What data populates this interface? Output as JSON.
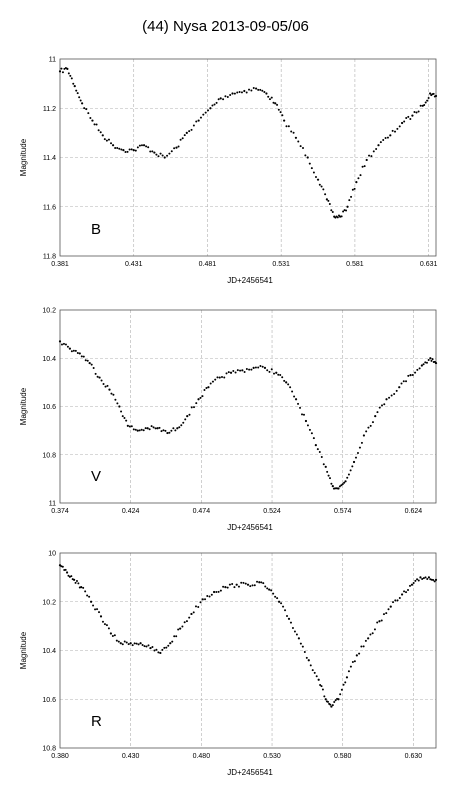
{
  "title": "(44) Nysa 2013-09-05/06",
  "chart_data": [
    {
      "type": "scatter",
      "band": "B",
      "xlabel": "JD+2456541",
      "ylabel": "Magnitude",
      "xlim": [
        0.381,
        0.636
      ],
      "ylim": [
        11.0,
        11.8
      ],
      "y_inverted": true,
      "grid": true,
      "xticks": [
        "0.381",
        "0.431",
        "0.481",
        "0.531",
        "0.581",
        "0.631"
      ],
      "xtick_values": [
        0.381,
        0.431,
        0.481,
        0.531,
        0.581,
        0.631
      ],
      "yticks": [
        "11",
        "11.2",
        "11.4",
        "11.6",
        "11.8"
      ],
      "ytick_values": [
        11.0,
        11.2,
        11.4,
        11.6,
        11.8
      ],
      "key": [
        [
          0.381,
          11.05
        ],
        [
          0.386,
          11.04
        ],
        [
          0.391,
          11.11
        ],
        [
          0.396,
          11.18
        ],
        [
          0.403,
          11.25
        ],
        [
          0.41,
          11.31
        ],
        [
          0.417,
          11.35
        ],
        [
          0.424,
          11.37
        ],
        [
          0.431,
          11.37
        ],
        [
          0.438,
          11.35
        ],
        [
          0.445,
          11.38
        ],
        [
          0.452,
          11.4
        ],
        [
          0.46,
          11.36
        ],
        [
          0.467,
          11.3
        ],
        [
          0.475,
          11.25
        ],
        [
          0.483,
          11.2
        ],
        [
          0.49,
          11.16
        ],
        [
          0.498,
          11.14
        ],
        [
          0.506,
          11.13
        ],
        [
          0.514,
          11.12
        ],
        [
          0.521,
          11.14
        ],
        [
          0.527,
          11.18
        ],
        [
          0.533,
          11.25
        ],
        [
          0.541,
          11.32
        ],
        [
          0.549,
          11.4
        ],
        [
          0.556,
          11.49
        ],
        [
          0.562,
          11.57
        ],
        [
          0.567,
          11.64
        ],
        [
          0.571,
          11.64
        ],
        [
          0.576,
          11.6
        ],
        [
          0.582,
          11.5
        ],
        [
          0.589,
          11.41
        ],
        [
          0.597,
          11.35
        ],
        [
          0.605,
          11.31
        ],
        [
          0.613,
          11.26
        ],
        [
          0.62,
          11.23
        ],
        [
          0.627,
          11.19
        ],
        [
          0.632,
          11.14
        ],
        [
          0.636,
          11.15
        ]
      ]
    },
    {
      "type": "scatter",
      "band": "V",
      "xlabel": "JD+2456541",
      "ylabel": "Magnitude",
      "xlim": [
        0.374,
        0.64
      ],
      "ylim": [
        10.2,
        11.0
      ],
      "y_inverted": true,
      "grid": true,
      "xticks": [
        "0.374",
        "0.424",
        "0.474",
        "0.524",
        "0.574",
        "0.624"
      ],
      "xtick_values": [
        0.374,
        0.424,
        0.474,
        0.524,
        0.574,
        0.624
      ],
      "yticks": [
        "10.2",
        "10.4",
        "10.6",
        "10.8",
        "11"
      ],
      "ytick_values": [
        10.2,
        10.4,
        10.6,
        10.8,
        11.0
      ],
      "key": [
        [
          0.374,
          10.33
        ],
        [
          0.381,
          10.36
        ],
        [
          0.388,
          10.38
        ],
        [
          0.395,
          10.42
        ],
        [
          0.402,
          10.48
        ],
        [
          0.409,
          10.53
        ],
        [
          0.416,
          10.6
        ],
        [
          0.422,
          10.68
        ],
        [
          0.429,
          10.7
        ],
        [
          0.436,
          10.69
        ],
        [
          0.443,
          10.69
        ],
        [
          0.45,
          10.71
        ],
        [
          0.457,
          10.69
        ],
        [
          0.464,
          10.64
        ],
        [
          0.472,
          10.57
        ],
        [
          0.479,
          10.52
        ],
        [
          0.487,
          10.48
        ],
        [
          0.495,
          10.46
        ],
        [
          0.503,
          10.45
        ],
        [
          0.511,
          10.44
        ],
        [
          0.519,
          10.44
        ],
        [
          0.527,
          10.46
        ],
        [
          0.534,
          10.5
        ],
        [
          0.541,
          10.57
        ],
        [
          0.548,
          10.66
        ],
        [
          0.555,
          10.76
        ],
        [
          0.562,
          10.85
        ],
        [
          0.567,
          10.93
        ],
        [
          0.571,
          10.94
        ],
        [
          0.576,
          10.91
        ],
        [
          0.582,
          10.83
        ],
        [
          0.589,
          10.72
        ],
        [
          0.597,
          10.64
        ],
        [
          0.605,
          10.57
        ],
        [
          0.614,
          10.52
        ],
        [
          0.622,
          10.47
        ],
        [
          0.63,
          10.43
        ],
        [
          0.636,
          10.4
        ],
        [
          0.64,
          10.42
        ]
      ]
    },
    {
      "type": "scatter",
      "band": "R",
      "xlabel": "JD+2456541",
      "ylabel": "Magnitude",
      "xlim": [
        0.38,
        0.646
      ],
      "ylim": [
        10.0,
        10.8
      ],
      "y_inverted": true,
      "grid": true,
      "xticks": [
        "0.380",
        "0.430",
        "0.480",
        "0.530",
        "0.580",
        "0.630"
      ],
      "xtick_values": [
        0.38,
        0.43,
        0.48,
        0.53,
        0.58,
        0.63
      ],
      "yticks": [
        "10",
        "10.2",
        "10.4",
        "10.6",
        "10.8"
      ],
      "ytick_values": [
        10.0,
        10.2,
        10.4,
        10.6,
        10.8
      ],
      "key": [
        [
          0.38,
          10.05
        ],
        [
          0.385,
          10.08
        ],
        [
          0.39,
          10.11
        ],
        [
          0.395,
          10.14
        ],
        [
          0.402,
          10.2
        ],
        [
          0.409,
          10.26
        ],
        [
          0.416,
          10.33
        ],
        [
          0.423,
          10.37
        ],
        [
          0.43,
          10.37
        ],
        [
          0.437,
          10.37
        ],
        [
          0.444,
          10.39
        ],
        [
          0.451,
          10.41
        ],
        [
          0.458,
          10.37
        ],
        [
          0.465,
          10.31
        ],
        [
          0.473,
          10.25
        ],
        [
          0.481,
          10.19
        ],
        [
          0.489,
          10.16
        ],
        [
          0.497,
          10.14
        ],
        [
          0.505,
          10.13
        ],
        [
          0.513,
          10.13
        ],
        [
          0.521,
          10.12
        ],
        [
          0.528,
          10.15
        ],
        [
          0.535,
          10.2
        ],
        [
          0.542,
          10.27
        ],
        [
          0.549,
          10.35
        ],
        [
          0.556,
          10.44
        ],
        [
          0.563,
          10.52
        ],
        [
          0.568,
          10.6
        ],
        [
          0.572,
          10.63
        ],
        [
          0.577,
          10.6
        ],
        [
          0.583,
          10.51
        ],
        [
          0.59,
          10.42
        ],
        [
          0.598,
          10.35
        ],
        [
          0.606,
          10.28
        ],
        [
          0.614,
          10.22
        ],
        [
          0.622,
          10.17
        ],
        [
          0.629,
          10.13
        ],
        [
          0.635,
          10.1
        ],
        [
          0.641,
          10.1
        ],
        [
          0.646,
          10.11
        ]
      ]
    }
  ]
}
